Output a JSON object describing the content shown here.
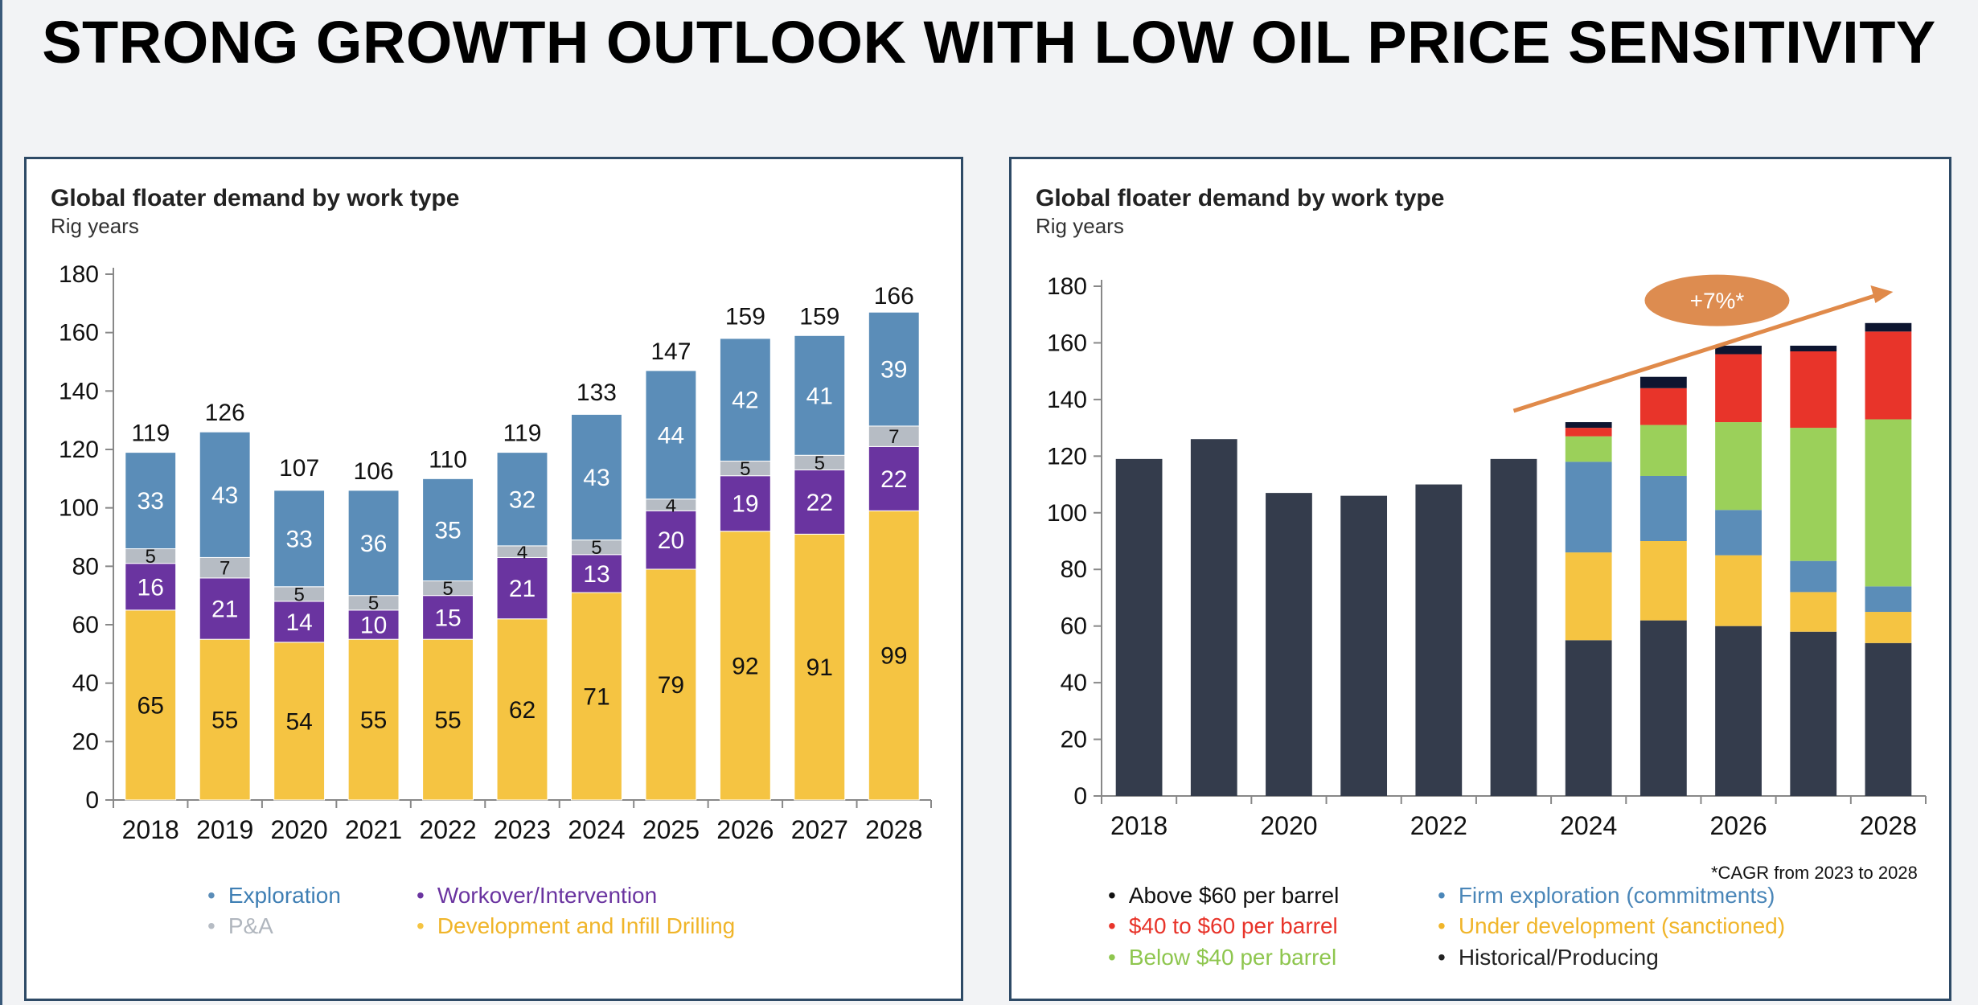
{
  "page_title": "STRONG GROWTH OUTLOOK WITH LOW OIL PRICE SENSITIVITY",
  "colors": {
    "exploration": "#5b8db8",
    "pa": "#b6bcc4",
    "workover": "#6a34a0",
    "development": "#f5c442",
    "historical": "#343c4c",
    "firm_exploration": "#5b8db8",
    "under_development": "#f5c442",
    "below40": "#9bd05a",
    "40to60": "#e8342a",
    "above60": "#0d1530",
    "arrow": "#e08a4a",
    "cagr_bubble": "#dd8c50"
  },
  "chart_data": [
    {
      "type": "bar",
      "stacked": true,
      "title": "Global floater demand by work type",
      "subtitle": "Rig years",
      "xlabel": "",
      "ylabel": "",
      "ylim": [
        0,
        180
      ],
      "yticks": [
        0,
        20,
        40,
        60,
        80,
        100,
        120,
        140,
        160,
        180
      ],
      "categories": [
        "2018",
        "2019",
        "2020",
        "2021",
        "2022",
        "2023",
        "2024",
        "2025",
        "2026",
        "2027",
        "2028"
      ],
      "totals": [
        119,
        126,
        107,
        106,
        110,
        119,
        133,
        147,
        159,
        159,
        166
      ],
      "series": [
        {
          "name": "Development and Infill Drilling",
          "key": "development",
          "values": [
            65,
            55,
            54,
            55,
            55,
            62,
            71,
            79,
            92,
            91,
            99
          ]
        },
        {
          "name": "Workover/Intervention",
          "key": "workover",
          "values": [
            16,
            21,
            14,
            10,
            15,
            21,
            13,
            20,
            19,
            22,
            22
          ]
        },
        {
          "name": "P&A",
          "key": "pa",
          "values": [
            5,
            7,
            5,
            5,
            5,
            4,
            5,
            4,
            5,
            5,
            7
          ]
        },
        {
          "name": "Exploration",
          "key": "exploration",
          "values": [
            33,
            43,
            33,
            36,
            35,
            32,
            43,
            44,
            42,
            41,
            39
          ]
        }
      ],
      "legend": [
        {
          "label": "Exploration",
          "key": "exploration"
        },
        {
          "label": "P&A",
          "key": "pa"
        },
        {
          "label": "Workover/Intervention",
          "key": "workover"
        },
        {
          "label": "Development and Infill Drilling",
          "key": "development"
        }
      ]
    },
    {
      "type": "bar",
      "stacked": true,
      "title": "Global floater demand by work type",
      "subtitle": "Rig years",
      "xlabel": "",
      "ylabel": "",
      "ylim": [
        0,
        180
      ],
      "yticks": [
        0,
        20,
        40,
        60,
        80,
        100,
        120,
        140,
        160,
        180
      ],
      "categories": [
        "2018",
        "2019",
        "2020",
        "2021",
        "2022",
        "2023",
        "2024",
        "2025",
        "2026",
        "2027",
        "2028"
      ],
      "xtick_labels": [
        "2018",
        "",
        "2020",
        "",
        "2022",
        "",
        "2024",
        "",
        "2026",
        "",
        "2028"
      ],
      "series": [
        {
          "name": "Historical/Producing",
          "key": "historical",
          "values": [
            119,
            126,
            107,
            106,
            110,
            119,
            55,
            62,
            60,
            58,
            54
          ]
        },
        {
          "name": "Under development (sanctioned)",
          "key": "under_development",
          "values": [
            0,
            0,
            0,
            0,
            0,
            0,
            31,
            28,
            25,
            14,
            11
          ]
        },
        {
          "name": "Firm exploration (commitments)",
          "key": "firm_exploration",
          "values": [
            0,
            0,
            0,
            0,
            0,
            0,
            32,
            23,
            16,
            11,
            9
          ]
        },
        {
          "name": "Below $40 per barrel",
          "key": "below40",
          "values": [
            0,
            0,
            0,
            0,
            0,
            0,
            9,
            18,
            31,
            47,
            59
          ]
        },
        {
          "name": "$40 to $60 per barrel",
          "key": "40to60",
          "values": [
            0,
            0,
            0,
            0,
            0,
            0,
            3,
            13,
            24,
            27,
            31
          ]
        },
        {
          "name": "Above $60 per barrel",
          "key": "above60",
          "values": [
            0,
            0,
            0,
            0,
            0,
            0,
            2,
            4,
            3,
            2,
            3
          ]
        }
      ],
      "annotation": {
        "text": "+7%*",
        "from_category": "2023",
        "to_category": "2028",
        "from_value": 136,
        "to_value": 178
      },
      "footnote": "*CAGR from 2023 to 2028",
      "legend": [
        {
          "label": "Above $60 per barrel",
          "key": "above60",
          "text_color": "#111111"
        },
        {
          "label": "$40 to $60 per barrel",
          "key": "40to60",
          "text_color": "#e8342a"
        },
        {
          "label": "Below $40 per barrel",
          "key": "below40",
          "text_color": "#8ec64e"
        },
        {
          "label": "Firm exploration (commitments)",
          "key": "firm_exploration",
          "text_color": "#4a86b8"
        },
        {
          "label": "Under development (sanctioned)",
          "key": "under_development",
          "text_color": "#f0b52a"
        },
        {
          "label": "Historical/Producing",
          "key": "historical",
          "text_color": "#222222"
        }
      ]
    }
  ]
}
